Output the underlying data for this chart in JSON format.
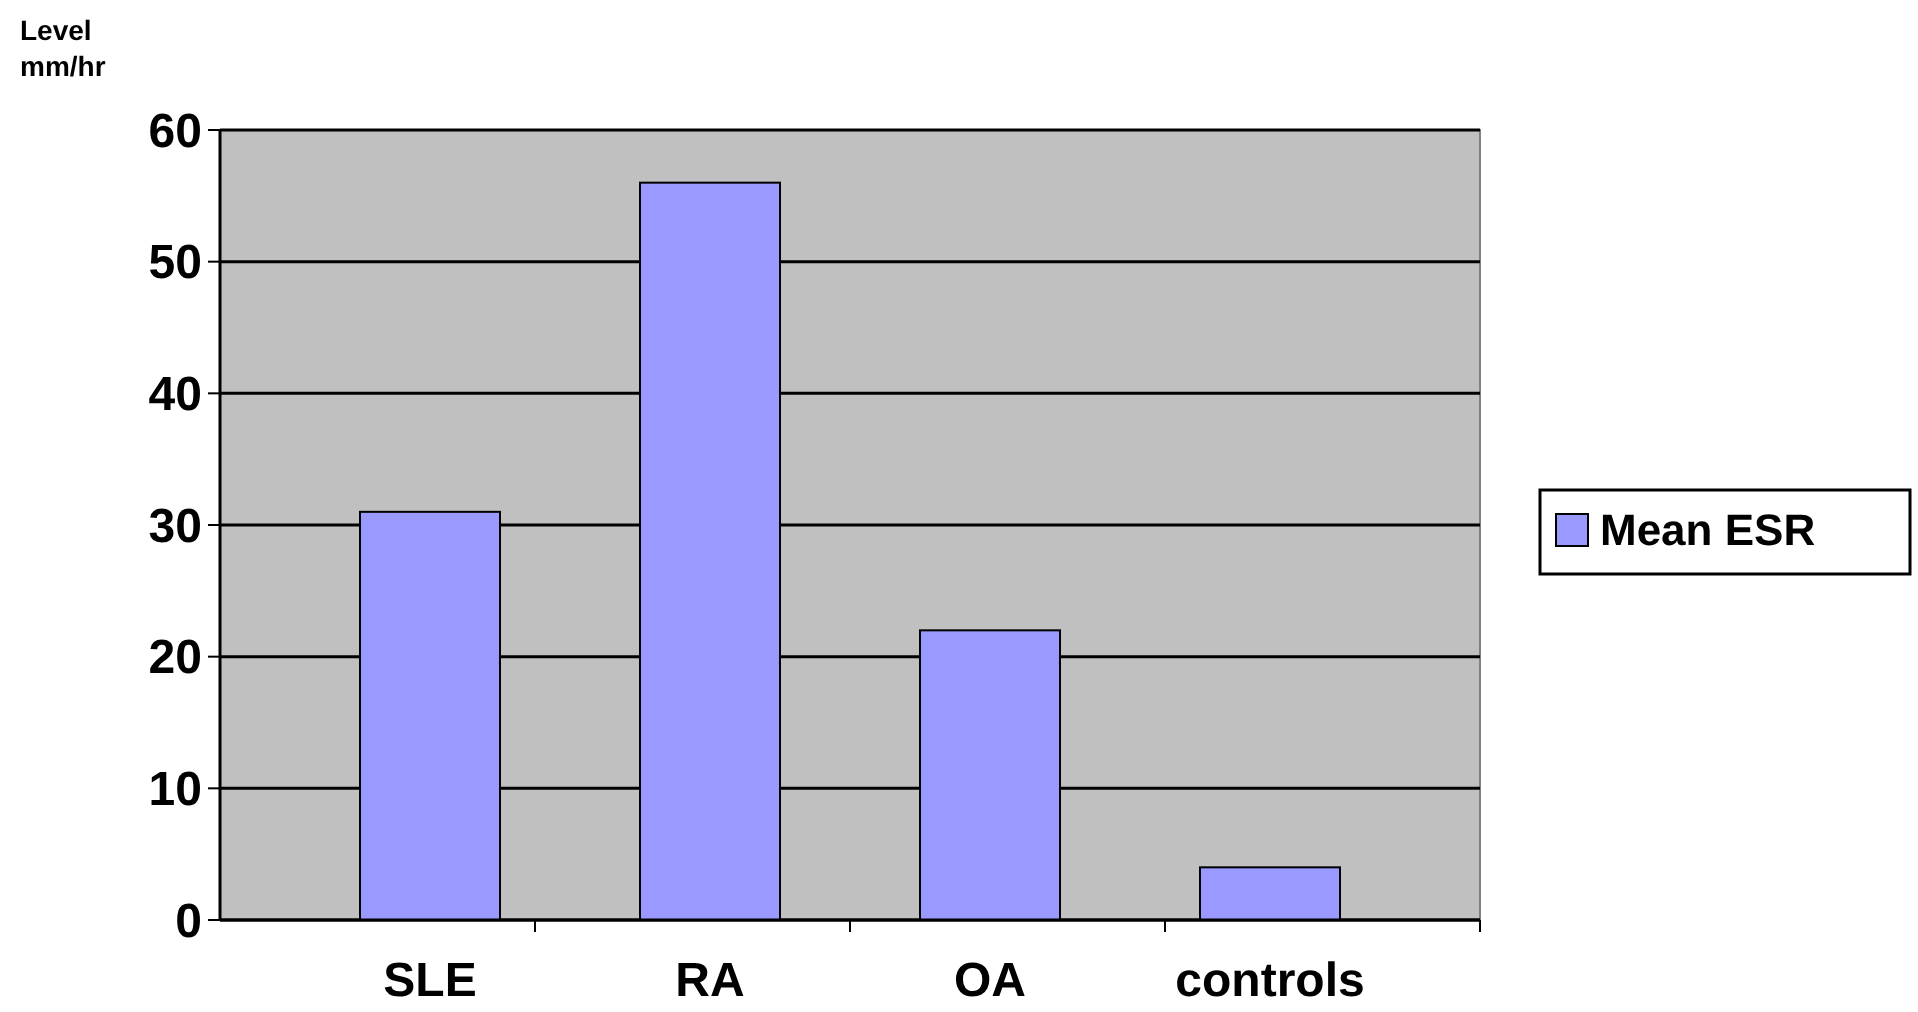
{
  "chart_data": {
    "type": "bar",
    "ylabel": "Level mm/hr",
    "categories": [
      "SLE",
      "RA",
      "OA",
      "controls"
    ],
    "series": [
      {
        "name": "Mean ESR",
        "color": "#9999ff",
        "values": [
          31,
          56,
          22,
          4
        ]
      }
    ],
    "ylim": [
      0,
      60
    ],
    "yticks": [
      0,
      10,
      20,
      30,
      40,
      50,
      60
    ],
    "grid": "y",
    "legend": "right"
  }
}
